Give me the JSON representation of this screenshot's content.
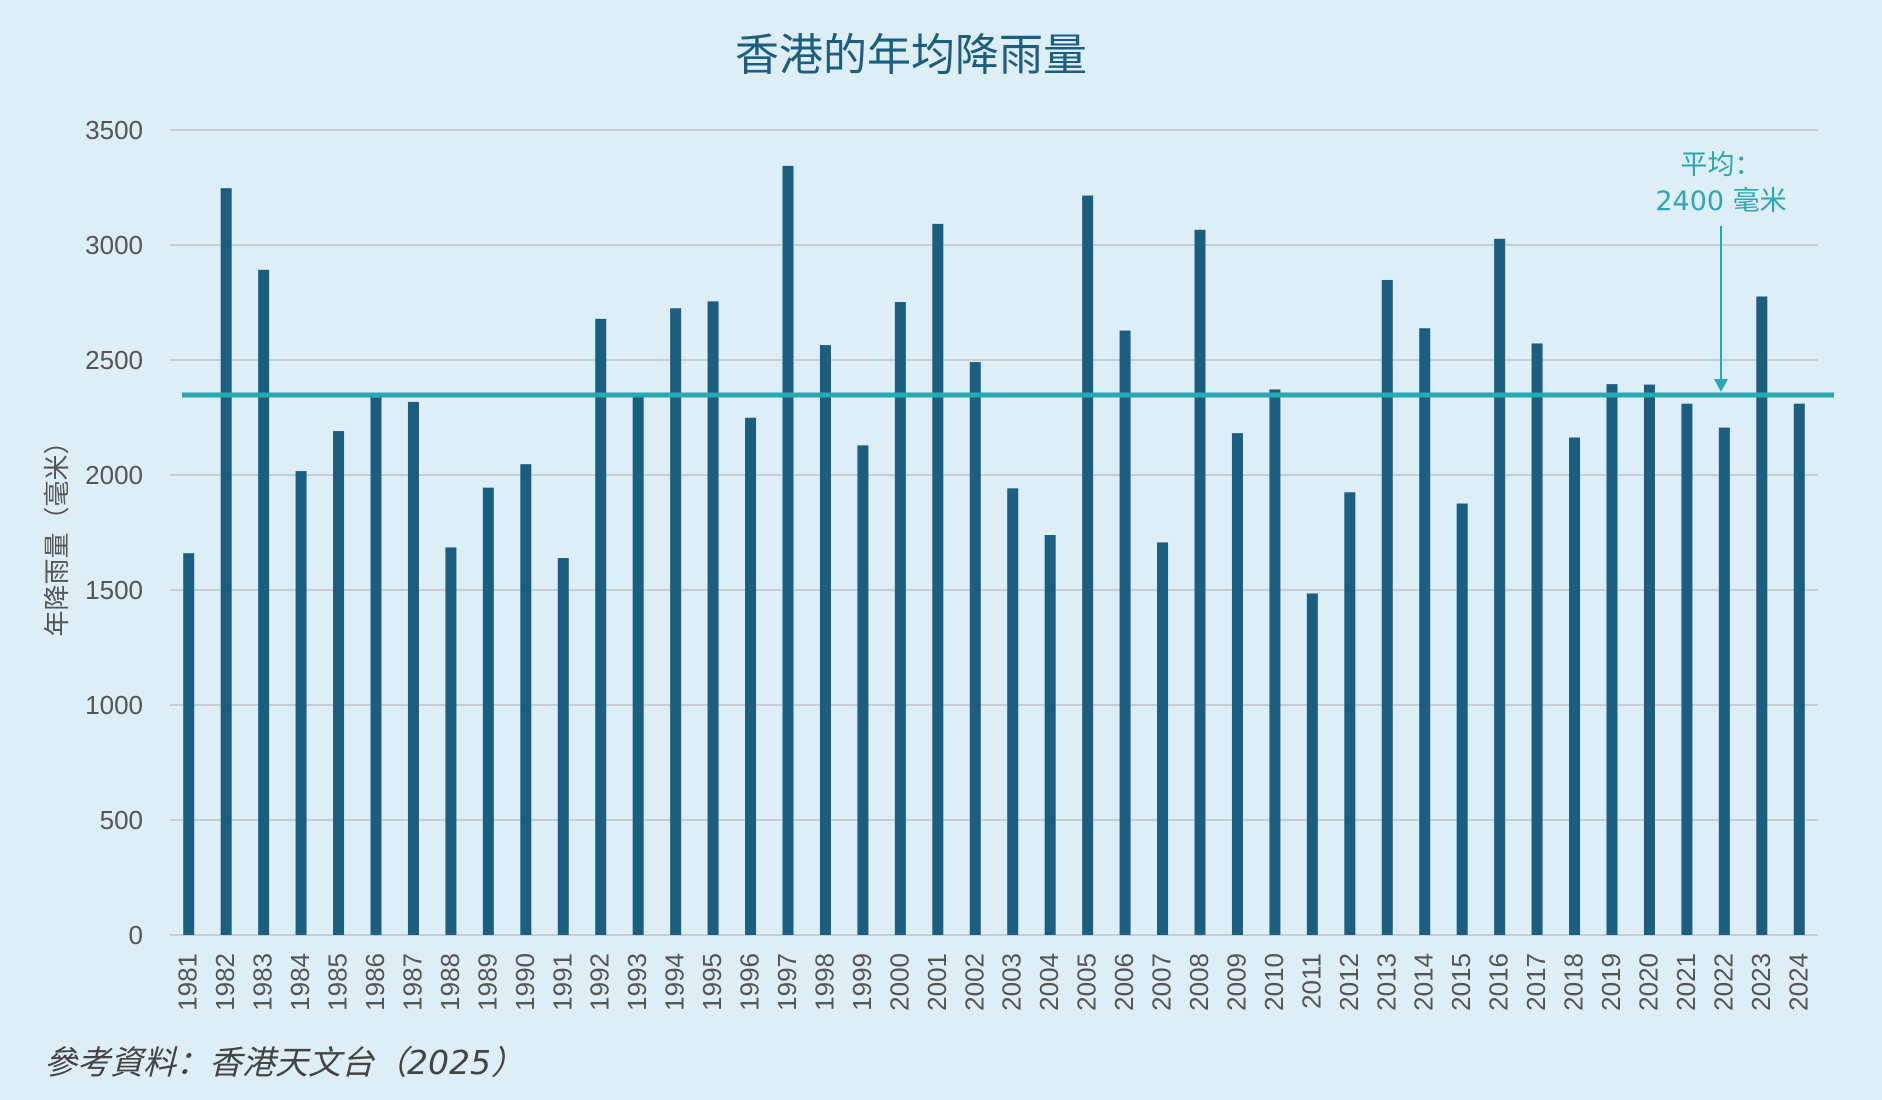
{
  "chart_data": {
    "type": "bar",
    "title": "香港的年均降雨量",
    "ylabel": "年降雨量（毫米）",
    "xlabel": "",
    "ylim": [
      0,
      3500
    ],
    "yticks": [
      0,
      500,
      1000,
      1500,
      2000,
      2500,
      3000,
      3500
    ],
    "grid": true,
    "categories": [
      "1981",
      "1982",
      "1983",
      "1984",
      "1985",
      "1986",
      "1987",
      "1988",
      "1989",
      "1990",
      "1991",
      "1992",
      "1993",
      "1994",
      "1995",
      "1996",
      "1997",
      "1998",
      "1999",
      "2000",
      "2001",
      "2002",
      "2003",
      "2004",
      "2005",
      "2006",
      "2007",
      "2008",
      "2009",
      "2010",
      "2011",
      "2012",
      "2013",
      "2014",
      "2015",
      "2016",
      "2017",
      "2018",
      "2019",
      "2020",
      "2021",
      "2022",
      "2023",
      "2024"
    ],
    "values": [
      1660,
      3247,
      2892,
      2017,
      2191,
      2337,
      2318,
      1685,
      1945,
      2047,
      1639,
      2679,
      2341,
      2725,
      2755,
      2249,
      3344,
      2565,
      2129,
      2752,
      3092,
      2491,
      1942,
      1739,
      3215,
      2628,
      1707,
      3066,
      2182,
      2372,
      1485,
      1925,
      2848,
      2638,
      1876,
      3027,
      2572,
      2163,
      2395,
      2393,
      2310,
      2206,
      2776,
      2310
    ],
    "average": {
      "value": 2400,
      "label_line1": "平均：",
      "label_line2": "2400 毫米"
    },
    "colors": {
      "bars": "#1b5e80",
      "average_line": "#2aa7b0",
      "grid": "#c7cdd2",
      "background": "#ddeef6"
    }
  },
  "source": "參考資料：香港天文台（2025）"
}
